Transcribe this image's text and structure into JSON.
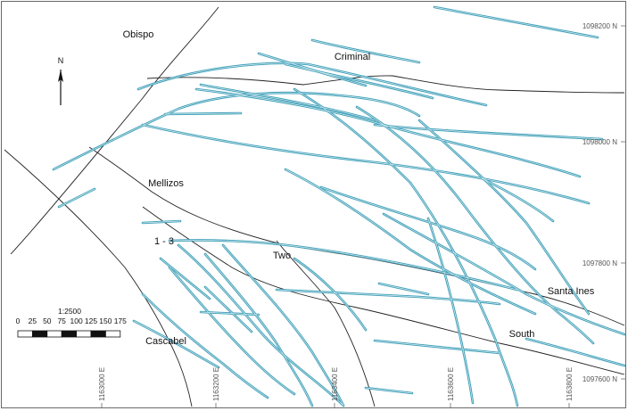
{
  "map": {
    "place_labels": [
      "Obispo",
      "Criminal",
      "Mellizos",
      "1 - 3",
      "Two",
      "Santa Ines",
      "South",
      "Cascabel"
    ],
    "northing_labels": [
      "1098200 N",
      "1098000 N",
      "1097800 N",
      "1097600 N"
    ],
    "easting_labels": [
      "1163000 E",
      "1163200 E",
      "1163400 E",
      "1163600 E",
      "1163800 E"
    ],
    "north_arrow": "N",
    "scale": {
      "ratio": "1:2500",
      "ticks": [
        0,
        25,
        50,
        75,
        100,
        125,
        150,
        175
      ]
    }
  }
}
